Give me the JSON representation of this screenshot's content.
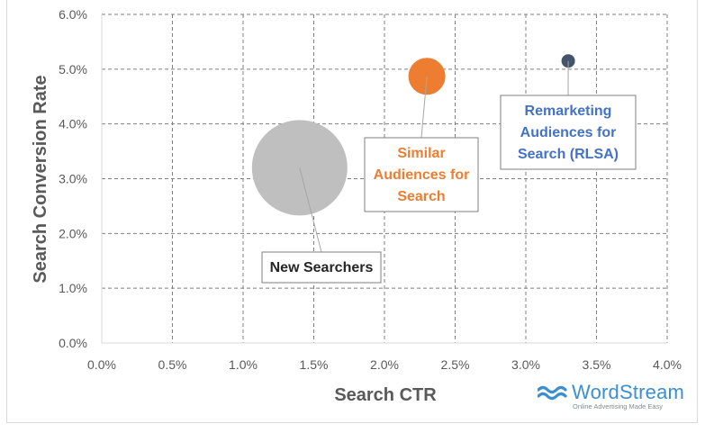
{
  "chart_data": {
    "type": "scatter",
    "bubble": true,
    "xlabel": "Search CTR",
    "ylabel": "Search Conversion Rate",
    "xlim": [
      0,
      0.04
    ],
    "ylim": [
      0,
      0.06
    ],
    "x_ticks": [
      "0.0%",
      "0.5%",
      "1.0%",
      "1.5%",
      "2.0%",
      "2.5%",
      "3.0%",
      "3.5%",
      "4.0%"
    ],
    "y_ticks": [
      "0.0%",
      "1.0%",
      "2.0%",
      "3.0%",
      "4.0%",
      "5.0%",
      "6.0%"
    ],
    "grid": "dashed",
    "series": [
      {
        "name": "New Searchers",
        "label_lines": [
          "New Searchers"
        ],
        "x": 0.014,
        "y": 0.032,
        "size": 1.0,
        "color": "#bfbfbf",
        "label_color": "#262626"
      },
      {
        "name": "Similar Audiences for Search",
        "label_lines": [
          "Similar",
          "Audiences for",
          "Search"
        ],
        "x": 0.023,
        "y": 0.0487,
        "size": 0.15,
        "color": "#ed7d31",
        "label_color": "#ed7d31"
      },
      {
        "name": "Remarketing Audiences for Search (RLSA)",
        "label_lines": [
          "Remarketing",
          "Audiences for",
          "Search (RLSA)"
        ],
        "x": 0.033,
        "y": 0.0515,
        "size": 0.02,
        "color": "#44546a",
        "label_color": "#4472c4"
      }
    ]
  },
  "logo": {
    "name": "WordStream",
    "tagline": "Online Advertising Made Easy",
    "color": "#3b8fd0"
  }
}
